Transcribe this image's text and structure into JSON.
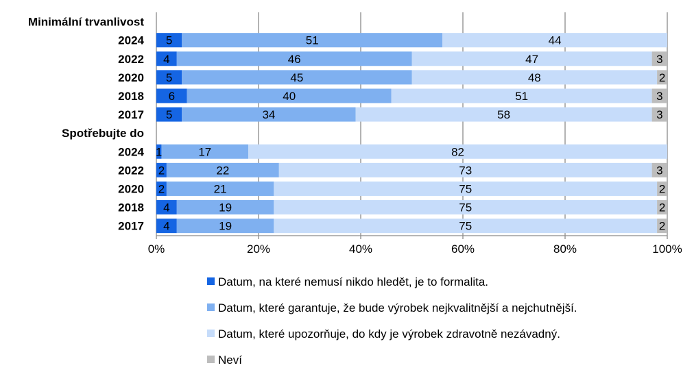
{
  "chart_data": {
    "type": "bar",
    "orientation": "horizontal",
    "stacked": "percent",
    "groups": [
      {
        "label": "Minimální trvanlivost",
        "rows": [
          {
            "year": "2024",
            "values": [
              5,
              51,
              44,
              0
            ]
          },
          {
            "year": "2022",
            "values": [
              4,
              46,
              47,
              3
            ]
          },
          {
            "year": "2020",
            "values": [
              5,
              45,
              48,
              2
            ]
          },
          {
            "year": "2018",
            "values": [
              6,
              40,
              51,
              3
            ]
          },
          {
            "year": "2017",
            "values": [
              5,
              34,
              58,
              3
            ]
          }
        ]
      },
      {
        "label": "Spotřebujte do",
        "rows": [
          {
            "year": "2024",
            "values": [
              1,
              17,
              82,
              0
            ]
          },
          {
            "year": "2022",
            "values": [
              2,
              22,
              73,
              3
            ]
          },
          {
            "year": "2020",
            "values": [
              2,
              21,
              75,
              2
            ]
          },
          {
            "year": "2018",
            "values": [
              4,
              19,
              75,
              2
            ]
          },
          {
            "year": "2017",
            "values": [
              4,
              19,
              75,
              2
            ]
          }
        ]
      }
    ],
    "series": [
      {
        "name": "Datum, na které nemusí nikdo hledět, je to formalita.",
        "color": "#1565e3"
      },
      {
        "name": "Datum, které garantuje, že bude výrobek nejkvalitnější a nejchutnější.",
        "color": "#7fb0f0"
      },
      {
        "name": "Datum, které upozorňuje, do kdy je výrobek zdravotně nezávadný.",
        "color": "#c6dcfa"
      },
      {
        "name": "Neví",
        "color": "#bdbdbd"
      }
    ],
    "xticks": [
      "0%",
      "20%",
      "40%",
      "60%",
      "80%",
      "100%"
    ],
    "xlim": [
      0,
      100
    ],
    "grid": true,
    "legend_position": "bottom"
  }
}
